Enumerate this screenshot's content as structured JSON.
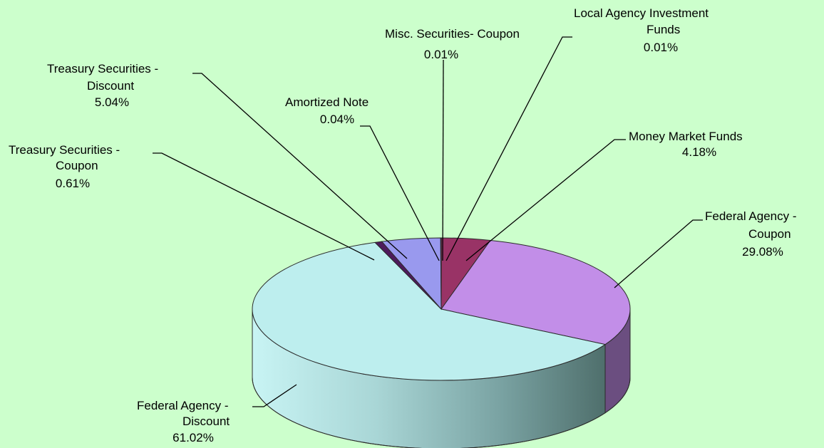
{
  "chart_data": {
    "type": "pie",
    "title": "",
    "style": "3d-exploded-none",
    "slices": [
      {
        "label_lines": [
          "Misc. Securities- Coupon"
        ],
        "pct_label": "0.01%",
        "value": 0.01,
        "color": "#6b3a4a"
      },
      {
        "label_lines": [
          "Money Market Funds"
        ],
        "pct_label": "4.18%",
        "value": 4.18,
        "color": "#993366"
      },
      {
        "label_lines": [
          "Federal Agency -",
          "Coupon"
        ],
        "pct_label": "29.08%",
        "value": 29.08,
        "color": "#c28ee8"
      },
      {
        "label_lines": [
          "Federal Agency -",
          "Discount"
        ],
        "pct_label": "61.02%",
        "value": 61.02,
        "color": "#bdeeee"
      },
      {
        "label_lines": [
          "Treasury Securities -",
          "Coupon"
        ],
        "pct_label": "0.61%",
        "value": 0.61,
        "color": "#4d1a5c"
      },
      {
        "label_lines": [
          "Treasury Securities -",
          "Discount"
        ],
        "pct_label": "5.04%",
        "value": 5.04,
        "color": "#9999ee"
      },
      {
        "label_lines": [
          "Amortized Note"
        ],
        "pct_label": "0.04%",
        "value": 0.04,
        "color": "#3a7a7a"
      },
      {
        "label_lines": [
          "Local Agency Investment",
          "Funds"
        ],
        "pct_label": "0.01%",
        "value": 0.01,
        "color": "#6b6b99"
      }
    ]
  }
}
